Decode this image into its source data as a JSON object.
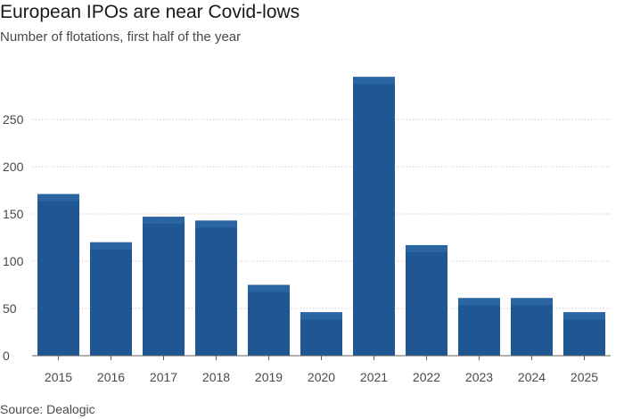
{
  "chart_data": {
    "type": "bar",
    "title": "European IPOs are near Covid-lows",
    "subtitle": "Number of flotations, first half of the year",
    "source": "Source: Dealogic",
    "categories": [
      "2015",
      "2016",
      "2017",
      "2018",
      "2019",
      "2020",
      "2021",
      "2022",
      "2023",
      "2024",
      "2025"
    ],
    "values": [
      171,
      120,
      147,
      143,
      75,
      46,
      295,
      117,
      61,
      61,
      46
    ],
    "ylim": [
      0,
      300
    ],
    "yticks": [
      0,
      50,
      100,
      150,
      200,
      250
    ],
    "grid": true,
    "colors": {
      "bar": "#1f5792",
      "bar_top": "#2a64a2",
      "grid": "#cfcac4",
      "baseline": "#66605c"
    }
  }
}
